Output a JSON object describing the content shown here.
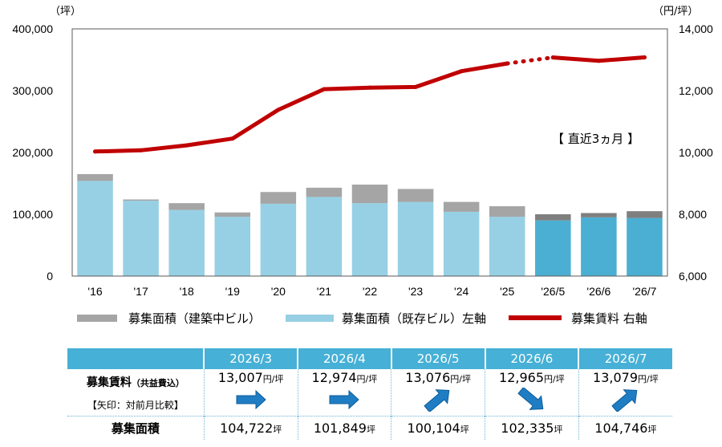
{
  "chart_data": {
    "type": "bar+line",
    "left_axis_unit": "（坪）",
    "right_axis_unit": "（円/坪）",
    "categories": [
      "'16",
      "'17",
      "'18",
      "'19",
      "'20",
      "'21",
      "'22",
      "'23",
      "'24",
      "'25",
      "'26/5",
      "'26/6",
      "'26/7"
    ],
    "left_ylim": [
      0,
      400000
    ],
    "left_ticks": [
      "0",
      "100,000",
      "200,000",
      "300,000",
      "400,000"
    ],
    "right_ylim": [
      6000,
      14000
    ],
    "right_ticks": [
      "6,000",
      "8,000",
      "10,000",
      "12,000",
      "14,000"
    ],
    "series": [
      {
        "name": "募集面積（既存ビル）左軸",
        "type": "bar",
        "color": "#97d0e4",
        "highlight_color": "#4aafd2",
        "values": [
          154000,
          122000,
          107000,
          96000,
          117000,
          128000,
          118000,
          120000,
          104000,
          96000,
          90000,
          95000,
          94000
        ]
      },
      {
        "name": "募集面積（建築中ビル）",
        "type": "bar",
        "color": "#a5a5a5",
        "highlight_color": "#7f7f7f",
        "values": [
          11000,
          2000,
          11000,
          7000,
          19000,
          15000,
          30000,
          21000,
          16000,
          17000,
          10000,
          7000,
          11000
        ]
      },
      {
        "name": "募集賃料 右軸",
        "type": "line",
        "color": "#c00000",
        "values": [
          10030,
          10070,
          10230,
          10450,
          11380,
          12050,
          12100,
          12120,
          12630,
          12880,
          13076,
          12965,
          13079
        ]
      }
    ],
    "highlight_from_index": 10,
    "annotation": "【 直近3ヵ月 】"
  },
  "table": {
    "months": [
      "2026/3",
      "2026/4",
      "2026/5",
      "2026/6",
      "2026/7"
    ],
    "rent_label": "募集賃料",
    "rent_label_note": "（共益費込）",
    "arrow_label": "【矢印：対前月比較】",
    "rent_values": [
      "13,007",
      "12,974",
      "13,076",
      "12,965",
      "13,079"
    ],
    "rent_unit": "円/坪",
    "arrows": [
      "flat",
      "flat",
      "up",
      "down",
      "up"
    ],
    "area_label": "募集面積",
    "area_values": [
      "104,722",
      "101,849",
      "100,104",
      "102,335",
      "104,746"
    ],
    "area_unit": "坪"
  }
}
